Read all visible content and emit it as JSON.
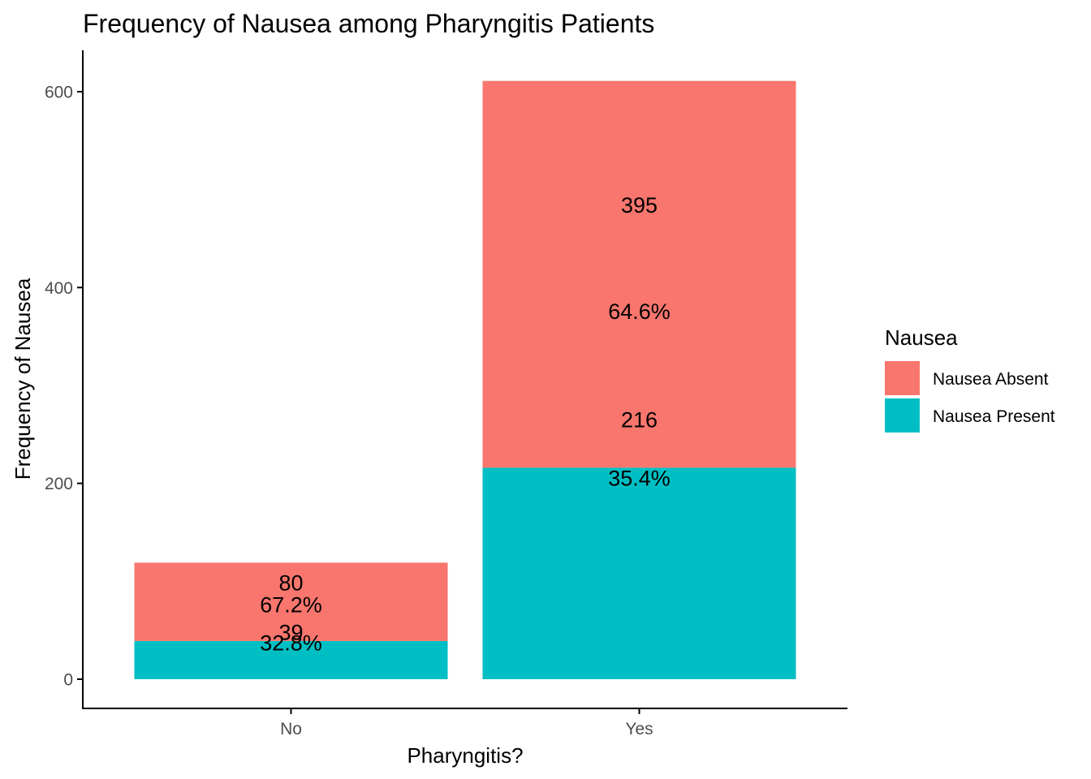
{
  "chart_data": {
    "type": "bar",
    "stacked": true,
    "title": "Frequency of Nausea among Pharyngitis Patients",
    "xlabel": "Pharyngitis?",
    "ylabel": "Frequency of Nausea",
    "categories": [
      "No",
      "Yes"
    ],
    "ylim": [
      0,
      640
    ],
    "yticks": [
      0,
      200,
      400,
      600
    ],
    "grid": false,
    "legend": {
      "title": "Nausea",
      "position": "right"
    },
    "series": [
      {
        "name": "Nausea Present",
        "color": "#00BFC4",
        "values": [
          39,
          216
        ],
        "percent_labels": [
          "32.8%",
          "35.4%"
        ]
      },
      {
        "name": "Nausea Absent",
        "color": "#F8766D",
        "values": [
          80,
          395
        ],
        "percent_labels": [
          "67.2%",
          "64.6%"
        ]
      }
    ],
    "legend_order": [
      "Nausea Absent",
      "Nausea Present"
    ],
    "axis_color": "#000000",
    "tick_label_color": "#4d4d4d"
  }
}
